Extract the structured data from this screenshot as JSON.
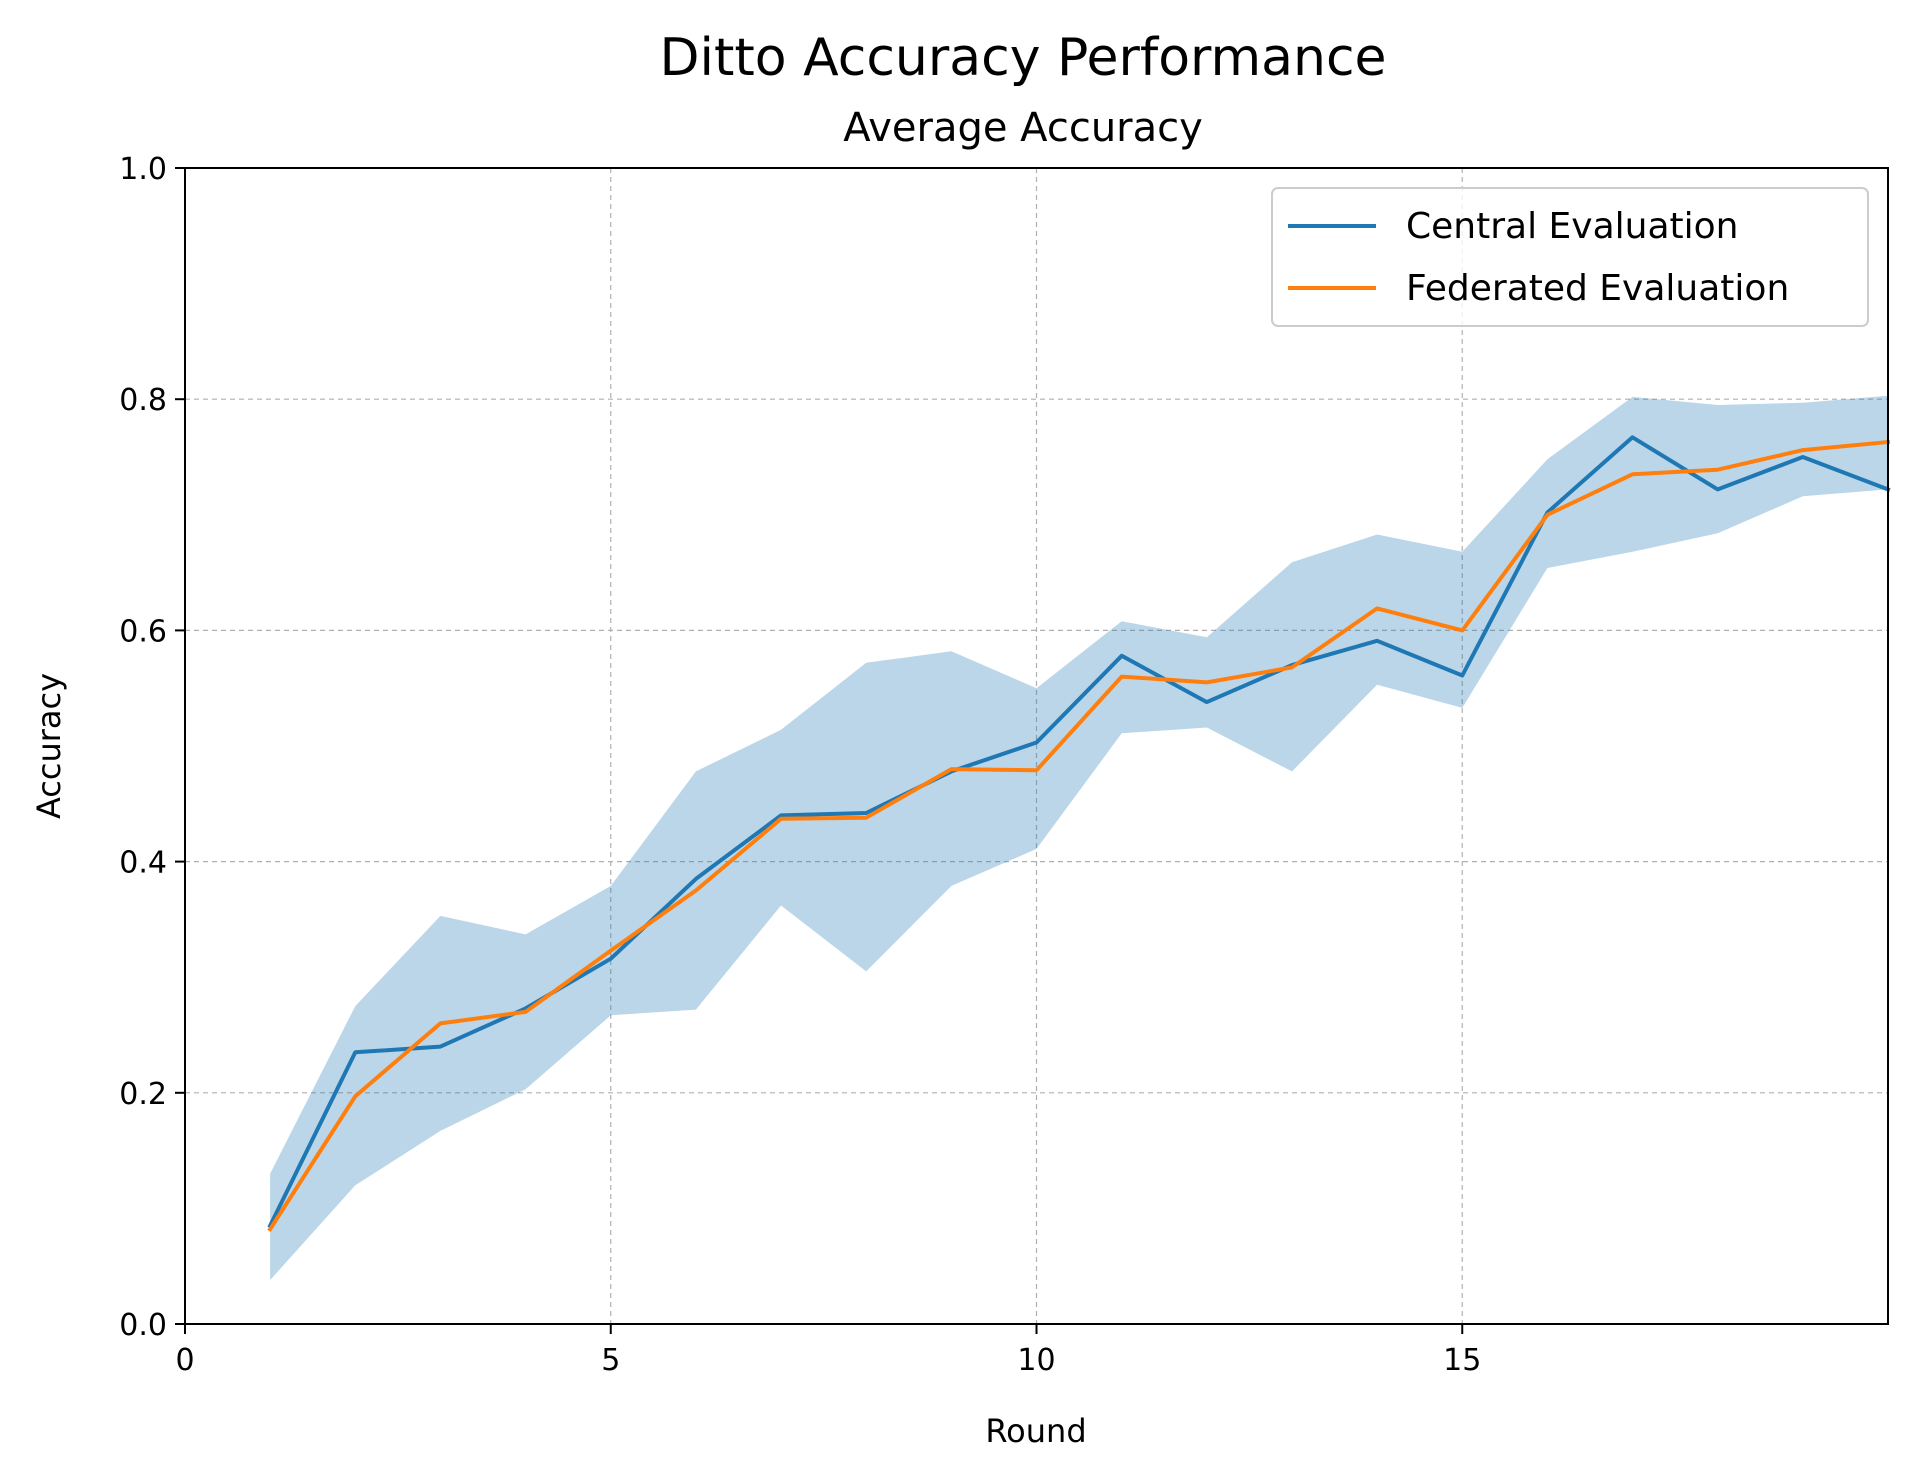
{
  "chart_data": {
    "type": "line",
    "title": "Ditto Accuracy Performance",
    "subtitle": "Average Accuracy",
    "xlabel": "Round",
    "ylabel": "Accuracy",
    "xlim": [
      0,
      20
    ],
    "ylim": [
      0,
      1.0
    ],
    "xticks": [
      0,
      5,
      10,
      15
    ],
    "xtick_labels": [
      "0",
      "5",
      "10",
      "15"
    ],
    "yticks": [
      0.0,
      0.2,
      0.4,
      0.6,
      0.8,
      1.0
    ],
    "ytick_labels": [
      "0.0",
      "0.2",
      "0.4",
      "0.6",
      "0.8",
      "1.0"
    ],
    "grid": true,
    "legend_position": "top-right",
    "x": [
      1,
      2,
      3,
      4,
      5,
      6,
      7,
      8,
      9,
      10,
      11,
      12,
      13,
      14,
      15,
      16,
      17,
      18,
      19,
      20
    ],
    "series": [
      {
        "name": "Central Evaluation",
        "color": "#1f77b4",
        "values": [
          0.085,
          0.235,
          0.24,
          0.273,
          0.316,
          0.385,
          0.44,
          0.442,
          0.478,
          0.503,
          0.578,
          0.538,
          0.57,
          0.591,
          0.561,
          0.702,
          0.767,
          0.722,
          0.75,
          0.722
        ]
      },
      {
        "name": "Federated Evaluation",
        "color": "#ff7f0e",
        "values": [
          0.082,
          0.197,
          0.26,
          0.27,
          0.323,
          0.375,
          0.437,
          0.438,
          0.48,
          0.479,
          0.56,
          0.555,
          0.568,
          0.619,
          0.6,
          0.7,
          0.735,
          0.739,
          0.756,
          0.763
        ]
      }
    ],
    "band": {
      "color": "#1f77b4",
      "opacity": 0.3,
      "lower": [
        0.038,
        0.12,
        0.167,
        0.203,
        0.267,
        0.272,
        0.362,
        0.305,
        0.379,
        0.411,
        0.511,
        0.516,
        0.478,
        0.553,
        0.533,
        0.654,
        0.668,
        0.684,
        0.716,
        0.722
      ],
      "upper": [
        0.13,
        0.275,
        0.353,
        0.337,
        0.379,
        0.478,
        0.514,
        0.572,
        0.582,
        0.55,
        0.608,
        0.594,
        0.659,
        0.683,
        0.668,
        0.748,
        0.802,
        0.795,
        0.797,
        0.803
      ]
    }
  }
}
